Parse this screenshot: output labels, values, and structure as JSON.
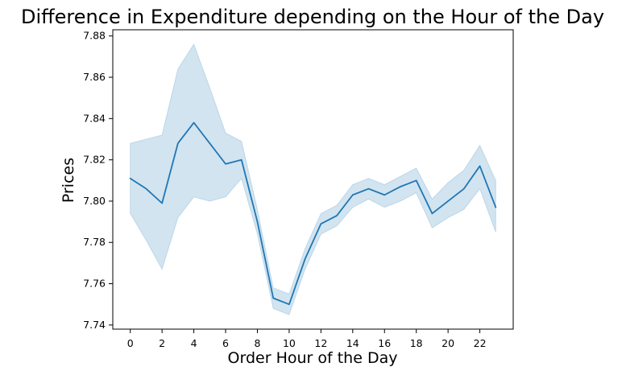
{
  "chart_data": {
    "type": "line",
    "title": "Difference in Expenditure depending on the Hour of the Day",
    "xlabel": "Order Hour of the Day",
    "ylabel": "Prices",
    "xlim": [
      -1.1,
      24.1
    ],
    "ylim": [
      7.738,
      7.883
    ],
    "xticks": [
      "0",
      "2",
      "4",
      "6",
      "8",
      "10",
      "12",
      "14",
      "16",
      "18",
      "20",
      "22"
    ],
    "yticks": [
      "7.74",
      "7.76",
      "7.78",
      "7.80",
      "7.82",
      "7.84",
      "7.86",
      "7.88"
    ],
    "grid": false,
    "colors": {
      "line": "#1f77b4",
      "band": "#1f77b4"
    },
    "series": [
      {
        "x": [
          0,
          1,
          2,
          3,
          4,
          5,
          6,
          7,
          8,
          9,
          10,
          11,
          12,
          13,
          14,
          15,
          16,
          17,
          18,
          19,
          20,
          21,
          22,
          23
        ],
        "values": [
          7.811,
          7.806,
          7.799,
          7.828,
          7.838,
          7.828,
          7.818,
          7.82,
          7.79,
          7.753,
          7.75,
          7.772,
          7.789,
          7.793,
          7.803,
          7.806,
          7.803,
          7.807,
          7.81,
          7.794,
          7.8,
          7.806,
          7.817,
          7.797
        ],
        "ci_lower": [
          7.794,
          7.781,
          7.767,
          7.792,
          7.802,
          7.8,
          7.802,
          7.811,
          7.784,
          7.748,
          7.745,
          7.767,
          7.784,
          7.788,
          7.797,
          7.801,
          7.797,
          7.8,
          7.804,
          7.787,
          7.792,
          7.796,
          7.806,
          7.785
        ],
        "ci_upper": [
          7.828,
          7.83,
          7.832,
          7.864,
          7.876,
          7.855,
          7.833,
          7.829,
          7.796,
          7.758,
          7.755,
          7.777,
          7.794,
          7.798,
          7.808,
          7.811,
          7.808,
          7.812,
          7.816,
          7.801,
          7.809,
          7.815,
          7.827,
          7.81
        ]
      }
    ]
  }
}
